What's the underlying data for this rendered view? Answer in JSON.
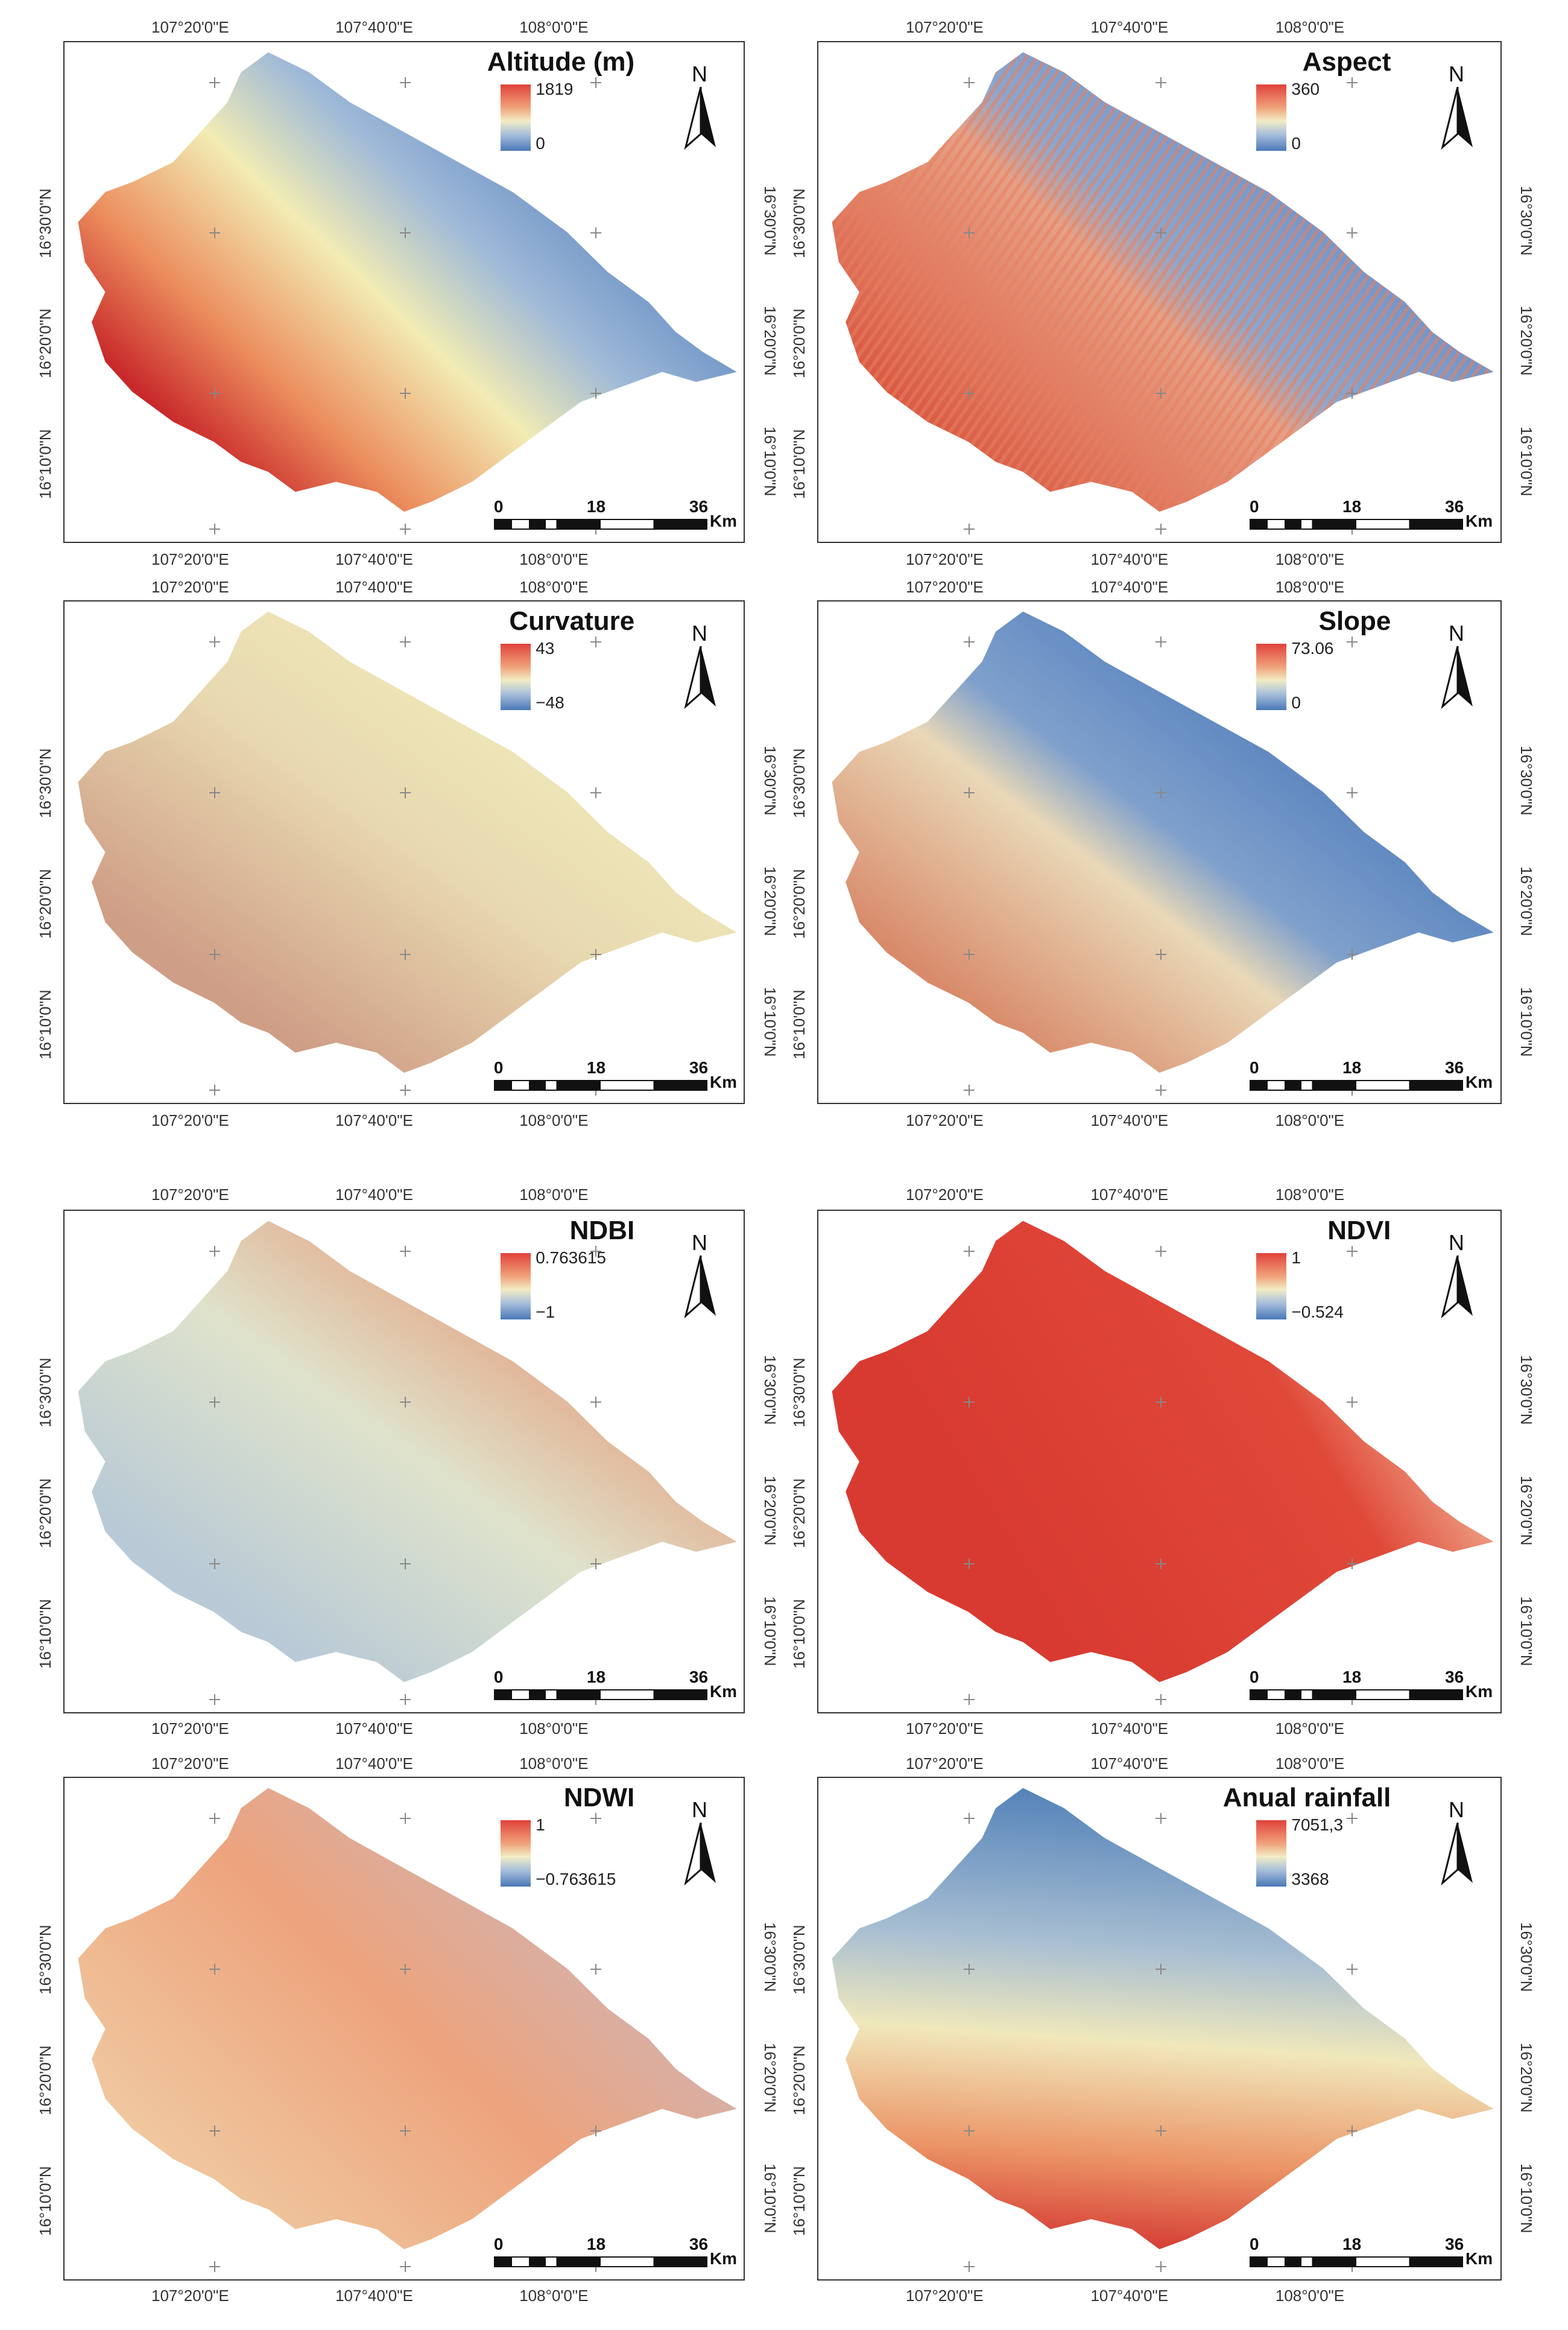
{
  "coords": {
    "lon": [
      "107°20'0\"E",
      "107°40'0\"E",
      "108°0'0\"E"
    ],
    "lat": [
      "16°30'0\"N",
      "16°20'0\"N",
      "16°10'0\"N"
    ]
  },
  "north_label": "N",
  "scale": {
    "labels": [
      "0",
      "18",
      "36"
    ],
    "unit": "Km"
  },
  "panels": [
    {
      "id": "altitude",
      "title": "Altitude (m)",
      "max": "1819",
      "min": "0",
      "style": "altitude"
    },
    {
      "id": "aspect",
      "title": "Aspect",
      "max": "360",
      "min": "0",
      "style": "aspect"
    },
    {
      "id": "curvature",
      "title": "Curvature",
      "max": "43",
      "min": "−48",
      "style": "curvature"
    },
    {
      "id": "slope",
      "title": "Slope",
      "max": "73.06",
      "min": "0",
      "style": "slope"
    },
    {
      "id": "ndbi",
      "title": "NDBI",
      "max": "0.763615",
      "min": "−1",
      "style": "ndbi"
    },
    {
      "id": "ndvi",
      "title": "NDVI",
      "max": "1",
      "min": "−0.524",
      "style": "ndvi"
    },
    {
      "id": "ndwi",
      "title": "NDWI",
      "max": "1",
      "min": "−0.763615",
      "style": "ndwi"
    },
    {
      "id": "rainfall",
      "title": "Anual rainfall",
      "max": "7051,3",
      "min": "3368",
      "style": "rainfall"
    }
  ],
  "colors": {
    "high": "#d7312f",
    "mid": "#f2ecb4",
    "low": "#4a78b8"
  }
}
